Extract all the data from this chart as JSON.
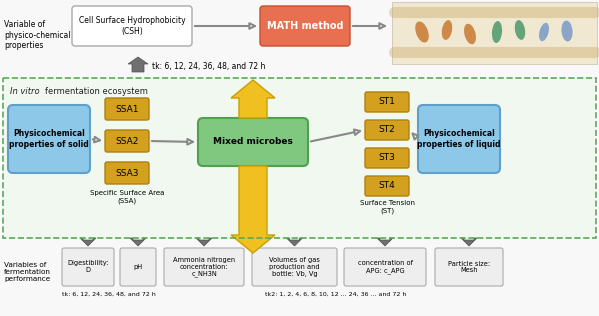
{
  "title_top_left": "Variable of\nphysico-chemical\nproperties",
  "title_bottom_left": "Variables of\nfermentation\nperformance",
  "top_box1_text": "Cell Surface Hydrophobicity\n(CSH)",
  "top_box2_text": "MATH method",
  "top_arrow_label": "tk: 6, 12, 24, 36, 48, and 72 h",
  "in_vitro_label": "In vitro fermentation ecosystem",
  "solid_box_text": "Physicochemical\nproperties of solid",
  "liquid_box_text": "Physicochemical\nproperties of liquid",
  "mixed_box_text": "Mixed microbes",
  "ssa_boxes": [
    "SSA1",
    "SSA2",
    "SSA3"
  ],
  "ssa_label": "Specific Surface Area\n(SSA)",
  "st_boxes": [
    "ST1",
    "ST2",
    "ST3",
    "ST4"
  ],
  "st_label": "Surface Tension\n(ST)",
  "bottom_boxes": [
    "Digestibility:\nD",
    "pH",
    "Ammonia nitrogen\nconcentration:\nc_NH3N",
    "Volumes of gas\nproduction and\nbottle: Vb, Vg",
    "concentration of\nAPG: c_APG",
    "Particle size:\nMesh"
  ],
  "bottom_label1": "tk: 6, 12, 24, 36, 48, and 72 h",
  "bottom_label2": "tk2: 1, 2, 4, 6, 8, 10, 12 ... 24, 36 ... and 72 h",
  "bg_color": "#ffffff",
  "dashed_border_color": "#5aaa5a",
  "big_arrow_color": "#f0c020",
  "grey_arrow_color": "#707070"
}
